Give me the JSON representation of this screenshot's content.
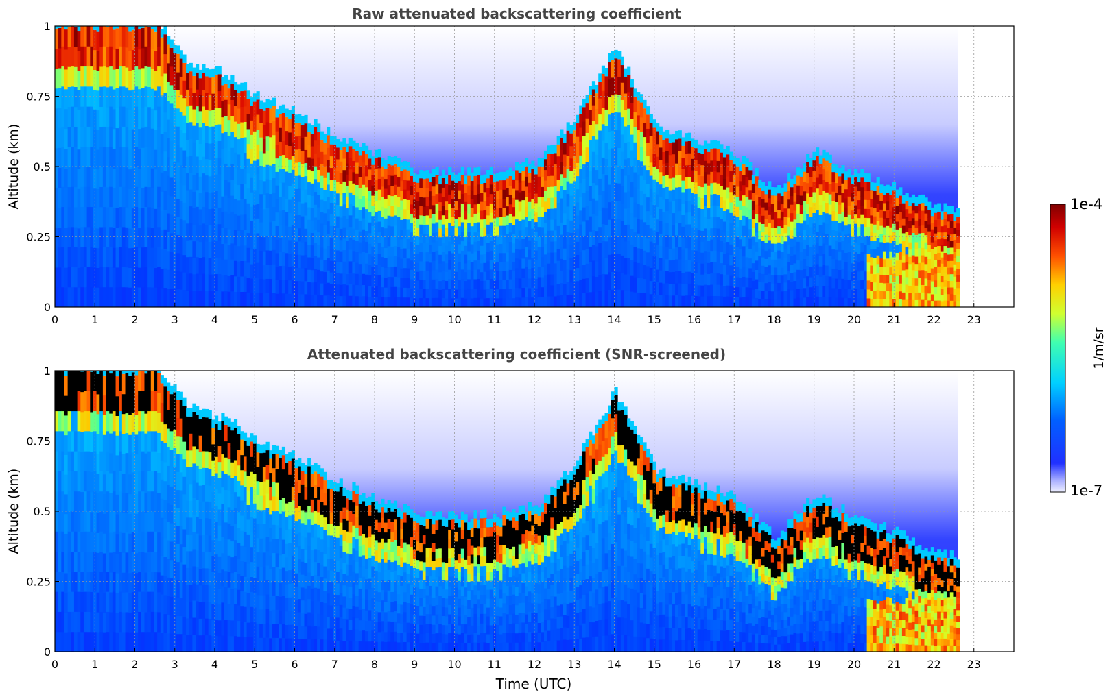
{
  "chart_data": [
    {
      "type": "heatmap",
      "title": "Raw attenuated backscattering coefficient",
      "xlabel": "",
      "ylabel": "Altitude (km)",
      "xlim": [
        0,
        24
      ],
      "ylim": [
        0,
        1
      ],
      "xticks": [
        "0",
        "1",
        "2",
        "3",
        "4",
        "5",
        "6",
        "7",
        "8",
        "9",
        "10",
        "11",
        "12",
        "13",
        "14",
        "15",
        "16",
        "17",
        "18",
        "19",
        "20",
        "21",
        "22",
        "23"
      ],
      "yticks": [
        "0",
        "0.25",
        "0.5",
        "0.75",
        "1"
      ],
      "grid": true,
      "data_end_hour": 22.6,
      "layer_top_km": [
        [
          0,
          1.0
        ],
        [
          2.5,
          1.0
        ],
        [
          3.3,
          0.84
        ],
        [
          4.3,
          0.8
        ],
        [
          5.0,
          0.72
        ],
        [
          6.0,
          0.67
        ],
        [
          7.0,
          0.58
        ],
        [
          8.0,
          0.52
        ],
        [
          9.0,
          0.46
        ],
        [
          10.0,
          0.45
        ],
        [
          11.0,
          0.46
        ],
        [
          12.0,
          0.49
        ],
        [
          13.0,
          0.65
        ],
        [
          14.0,
          0.9
        ],
        [
          15.0,
          0.62
        ],
        [
          16.0,
          0.57
        ],
        [
          17.0,
          0.52
        ],
        [
          18.0,
          0.38
        ],
        [
          19.0,
          0.53
        ],
        [
          20.0,
          0.45
        ],
        [
          21.0,
          0.4
        ],
        [
          22.0,
          0.33
        ],
        [
          22.6,
          0.31
        ]
      ],
      "screened": false
    },
    {
      "type": "heatmap",
      "title": "Attenuated backscattering coefficient (SNR-screened)",
      "xlabel": "Time (UTC)",
      "ylabel": "Altitude (km)",
      "xlim": [
        0,
        24
      ],
      "ylim": [
        0,
        1
      ],
      "xticks": [
        "0",
        "1",
        "2",
        "3",
        "4",
        "5",
        "6",
        "7",
        "8",
        "9",
        "10",
        "11",
        "12",
        "13",
        "14",
        "15",
        "16",
        "17",
        "18",
        "19",
        "20",
        "21",
        "22",
        "23"
      ],
      "yticks": [
        "0",
        "0.25",
        "0.5",
        "0.75",
        "1"
      ],
      "grid": true,
      "data_end_hour": 22.6,
      "layer_top_km": [
        [
          0,
          1.0
        ],
        [
          2.5,
          1.0
        ],
        [
          3.3,
          0.84
        ],
        [
          4.3,
          0.8
        ],
        [
          5.0,
          0.72
        ],
        [
          6.0,
          0.67
        ],
        [
          7.0,
          0.58
        ],
        [
          8.0,
          0.52
        ],
        [
          9.0,
          0.46
        ],
        [
          10.0,
          0.45
        ],
        [
          11.0,
          0.46
        ],
        [
          12.0,
          0.49
        ],
        [
          13.0,
          0.65
        ],
        [
          14.0,
          0.9
        ],
        [
          15.0,
          0.62
        ],
        [
          16.0,
          0.57
        ],
        [
          17.0,
          0.52
        ],
        [
          18.0,
          0.38
        ],
        [
          19.0,
          0.53
        ],
        [
          20.0,
          0.45
        ],
        [
          21.0,
          0.4
        ],
        [
          22.0,
          0.33
        ],
        [
          22.6,
          0.31
        ]
      ],
      "screened": true
    }
  ],
  "colorbar": {
    "label": "1/m/sr",
    "min_label": "1e-7",
    "max_label": "1e-4",
    "colormap": "jet",
    "scale": "log"
  }
}
